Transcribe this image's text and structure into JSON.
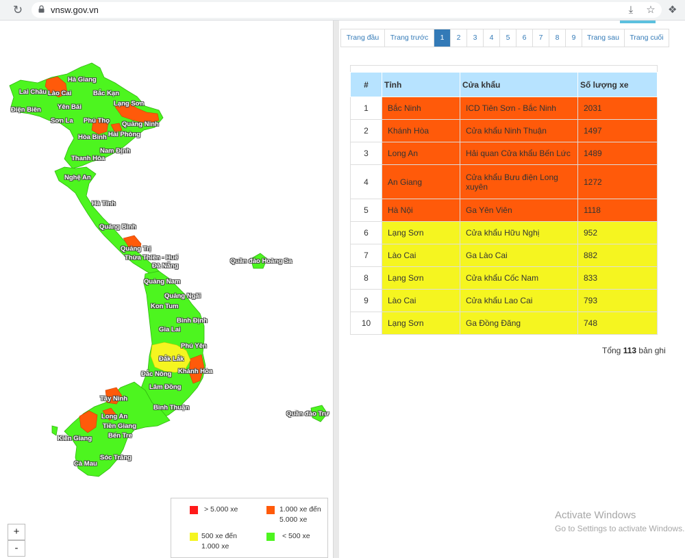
{
  "browser": {
    "url": "vnsw.gov.vn",
    "reload_icon": "reload-icon",
    "share_icon": "share-icon",
    "bookmark_icon": "star-icon",
    "extensions_icon": "puzzle-icon"
  },
  "map": {
    "zoom_in": "+",
    "zoom_out": "-",
    "provinces": [
      {
        "name": "Hà Giang"
      },
      {
        "name": "Lai Châu"
      },
      {
        "name": "Lào Cai"
      },
      {
        "name": "Bắc Kạn"
      },
      {
        "name": "Điện Biên"
      },
      {
        "name": "Yên Bái"
      },
      {
        "name": "Lạng Sơn"
      },
      {
        "name": "Sơn La"
      },
      {
        "name": "Phú Thọ"
      },
      {
        "name": "Quảng Ninh"
      },
      {
        "name": "Hải Phòng"
      },
      {
        "name": "Hòa Bình"
      },
      {
        "name": "Nam Định"
      },
      {
        "name": "Thanh Hóa"
      },
      {
        "name": "Nghệ An"
      },
      {
        "name": "Hà Tĩnh"
      },
      {
        "name": "Quảng Bình"
      },
      {
        "name": "Quảng Trị"
      },
      {
        "name": "Thừa Thiên - Huế"
      },
      {
        "name": "Đà Nẵng"
      },
      {
        "name": "Quần đảo Hoàng Sa"
      },
      {
        "name": "Quảng Nam"
      },
      {
        "name": "Quảng Ngãi"
      },
      {
        "name": "Kon Tum"
      },
      {
        "name": "Bình Định"
      },
      {
        "name": "Gia Lai"
      },
      {
        "name": "Phú Yên"
      },
      {
        "name": "Đắk Lắk"
      },
      {
        "name": "Đắc Nông"
      },
      {
        "name": "Khánh Hòa"
      },
      {
        "name": "Lâm Đồng"
      },
      {
        "name": "Tây Ninh"
      },
      {
        "name": "Bình Thuận"
      },
      {
        "name": "Long An"
      },
      {
        "name": "Quần đảo Trư"
      },
      {
        "name": "Tiền Giang"
      },
      {
        "name": "Kiên Giang"
      },
      {
        "name": "Bến Tre"
      },
      {
        "name": "Sóc Trăng"
      },
      {
        "name": "Cà Mau"
      }
    ],
    "legend": [
      {
        "label": "> 5.000 xe",
        "color": "#ff1a1a"
      },
      {
        "label": "1.000 xe đến 5.000 xe",
        "color": "#ff5a0a"
      },
      {
        "label": "500 xe đến 1.000 xe",
        "color": "#f5f520"
      },
      {
        "label": "< 500 xe",
        "color": "#4df51f"
      }
    ]
  },
  "pagination": {
    "first": "Trang đầu",
    "prev": "Trang trước",
    "pages": [
      "1",
      "2",
      "3",
      "4",
      "5",
      "6",
      "7",
      "8",
      "9"
    ],
    "active": "1",
    "next": "Trang sau",
    "last": "Trang cuối"
  },
  "table": {
    "headers": [
      "#",
      "Tỉnh",
      "Cửa khẩu",
      "Số lượng xe"
    ],
    "rows": [
      {
        "idx": "1",
        "province": "Bắc Ninh",
        "gate": "ICD Tiên Sơn - Bắc Ninh",
        "count": "2031",
        "level": "orange"
      },
      {
        "idx": "2",
        "province": "Khánh Hòa",
        "gate": "Cửa khẩu Ninh Thuận",
        "count": "1497",
        "level": "orange"
      },
      {
        "idx": "3",
        "province": "Long An",
        "gate": "Hải quan Cửa khẩu Bến Lức",
        "count": "1489",
        "level": "orange"
      },
      {
        "idx": "4",
        "province": "An Giang",
        "gate": "Cửa khẩu Bưu điện Long xuyên",
        "count": "1272",
        "level": "orange"
      },
      {
        "idx": "5",
        "province": "Hà Nội",
        "gate": "Ga Yên Viên",
        "count": "1118",
        "level": "orange"
      },
      {
        "idx": "6",
        "province": "Lạng Sơn",
        "gate": "Cửa khẩu Hữu Nghị",
        "count": "952",
        "level": "yellow"
      },
      {
        "idx": "7",
        "province": "Lào Cai",
        "gate": "Ga Lào Cai",
        "count": "882",
        "level": "yellow"
      },
      {
        "idx": "8",
        "province": "Lạng Sơn",
        "gate": "Cửa khẩu Cốc Nam",
        "count": "833",
        "level": "yellow"
      },
      {
        "idx": "9",
        "province": "Lào Cai",
        "gate": "Cửa khẩu Lao Cai",
        "count": "793",
        "level": "yellow"
      },
      {
        "idx": "10",
        "province": "Lạng Sơn",
        "gate": "Ga Đồng Đăng",
        "count": "748",
        "level": "yellow"
      }
    ],
    "total_prefix": "Tổng",
    "total_count": "113",
    "total_suffix": "bản ghi"
  },
  "watermark": {
    "line1": "Activate Windows",
    "line2": "Go to Settings to activate Windows."
  }
}
